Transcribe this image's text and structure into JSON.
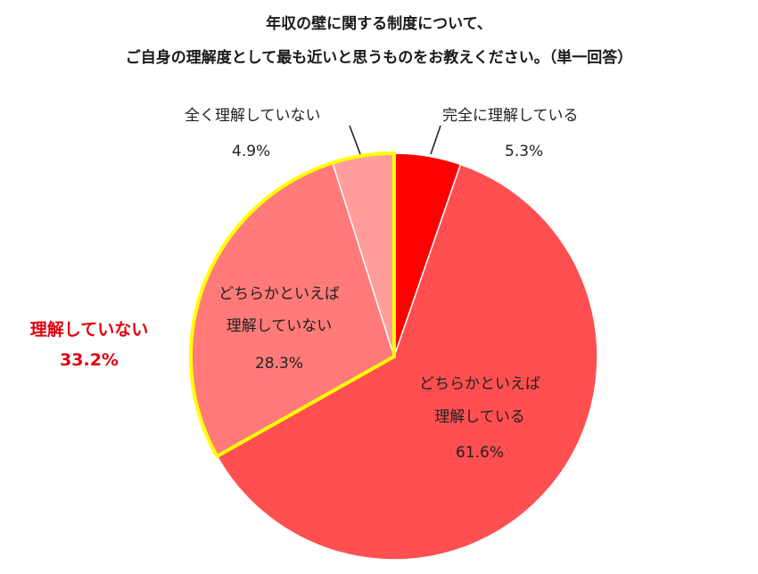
{
  "chart_data": {
    "type": "pie",
    "title": [
      "年収の壁に関する制度について、",
      "ご自身の理解度として最も近いと思うものをお教えください。（単一回答）"
    ],
    "slices": [
      {
        "label": "完全に理解している",
        "value": 5.3,
        "value_label": "5.3%",
        "color": "#ff0000"
      },
      {
        "label": "どちらかといえば理解している",
        "label_lines": [
          "どちらかといえば",
          "理解している"
        ],
        "value": 61.6,
        "value_label": "61.6%",
        "color": "#ff4f50"
      },
      {
        "label": "どちらかといえば理解していない",
        "label_lines": [
          "どちらかといえば",
          "理解していない"
        ],
        "value": 28.3,
        "value_label": "28.3%",
        "color": "#ff7a79"
      },
      {
        "label": "全く理解していない",
        "value": 4.9,
        "value_label": "4.9%",
        "color": "#ff9d9c"
      }
    ],
    "highlight_group": {
      "label": "理解していない",
      "value_label": "33.2%",
      "outline_color": "#ffff00",
      "text_color": "#e0000f"
    }
  }
}
